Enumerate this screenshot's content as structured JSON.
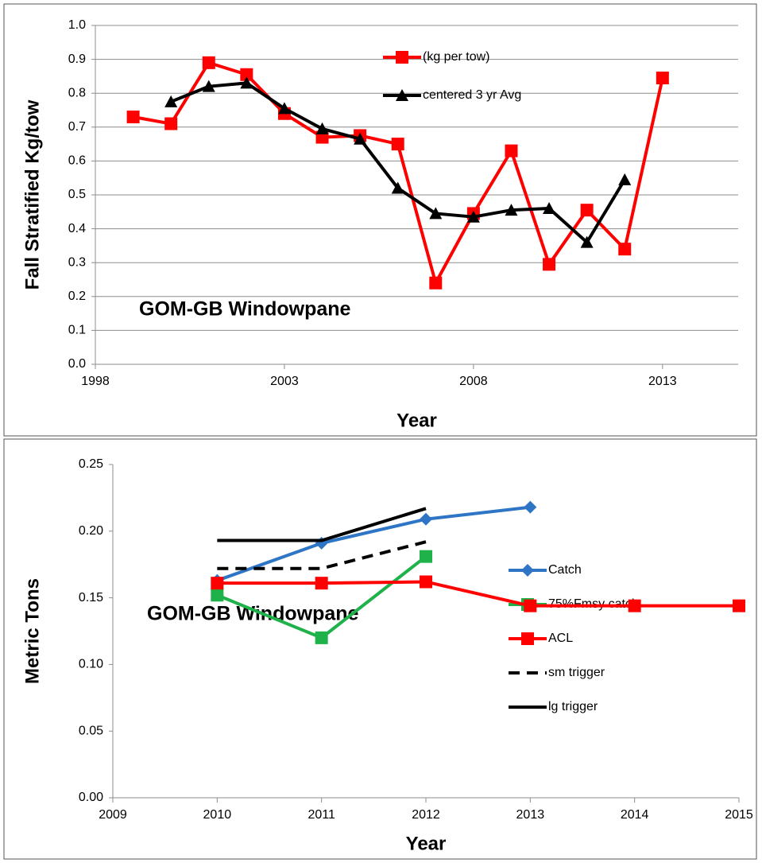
{
  "chart_data": [
    {
      "type": "line",
      "annotation": "GOM-GB  Windowpane",
      "x_label": "Year",
      "y_label": "Fall Stratified  Kg/tow",
      "xlim": [
        1998,
        2015
      ],
      "xticks": [
        1998,
        2003,
        2008,
        2013
      ],
      "ylim": [
        0,
        1
      ],
      "yticks": [
        {
          "value": 0,
          "label": "0.0"
        },
        0.1,
        0.2,
        0.3,
        0.4,
        0.5,
        0.6,
        0.7,
        0.8,
        0.9,
        {
          "value": 1,
          "label": "1.0"
        }
      ],
      "grid": true,
      "legend": "top",
      "series": [
        {
          "name": "(kg per tow)",
          "color": "#ff0000",
          "marker": "square",
          "x": [
            1999,
            2000,
            2001,
            2002,
            2003,
            2004,
            2005,
            2006,
            2007,
            2008,
            2009,
            2010,
            2011,
            2012,
            2013
          ],
          "values": [
            0.73,
            0.71,
            0.89,
            0.855,
            0.74,
            0.67,
            0.675,
            0.65,
            0.24,
            0.445,
            0.63,
            0.295,
            0.455,
            0.34,
            0.845
          ]
        },
        {
          "name": "centered 3 yr Avg",
          "color": "#000000",
          "marker": "triangle",
          "x": [
            2000,
            2001,
            2002,
            2003,
            2004,
            2005,
            2006,
            2007,
            2008,
            2009,
            2010,
            2011,
            2012
          ],
          "values": [
            0.775,
            0.82,
            0.83,
            0.755,
            0.695,
            0.665,
            0.52,
            0.445,
            0.435,
            0.455,
            0.46,
            0.36,
            0.545
          ]
        }
      ]
    },
    {
      "type": "line",
      "annotation": "GOM-GB  Windowpane",
      "x_label": "Year",
      "y_label": "Metric Tons",
      "xlim": [
        2009,
        2015
      ],
      "xticks": [
        2009,
        2010,
        2011,
        2012,
        2013,
        2014,
        2015
      ],
      "ylim": [
        0,
        0.25
      ],
      "yticks": [
        {
          "value": 0,
          "label": "0.00"
        },
        {
          "value": 0.05,
          "label": "0.05"
        },
        {
          "value": 0.1,
          "label": "0.10"
        },
        {
          "value": 0.15,
          "label": "0.15"
        },
        {
          "value": 0.2,
          "label": "0.20"
        },
        {
          "value": 0.25,
          "label": "0.25"
        }
      ],
      "grid": false,
      "legend": "right",
      "series": [
        {
          "name": "Catch",
          "color": "#2e75c6",
          "marker": "diamond",
          "x": [
            2010,
            2011,
            2012,
            2013
          ],
          "values": [
            0.163,
            0.191,
            0.209,
            0.218
          ]
        },
        {
          "name": "75%Fmsy catch",
          "color": "#1fb24a",
          "marker": "square",
          "x": [
            2010,
            2011,
            2012
          ],
          "values": [
            0.152,
            0.12,
            0.181
          ]
        },
        {
          "name": "ACL",
          "color": "#ff0000",
          "marker": "square",
          "x": [
            2010,
            2011,
            2012,
            2013,
            2014,
            2015
          ],
          "values": [
            0.161,
            0.161,
            0.162,
            0.144,
            0.144,
            0.144
          ]
        },
        {
          "name": "sm trigger",
          "color": "#000000",
          "marker": "none",
          "dash": true,
          "x": [
            2010,
            2011,
            2012
          ],
          "values": [
            0.172,
            0.172,
            0.192
          ]
        },
        {
          "name": "lg trigger",
          "color": "#000000",
          "marker": "none",
          "x": [
            2010,
            2011,
            2012
          ],
          "values": [
            0.193,
            0.193,
            0.217
          ]
        }
      ]
    }
  ]
}
